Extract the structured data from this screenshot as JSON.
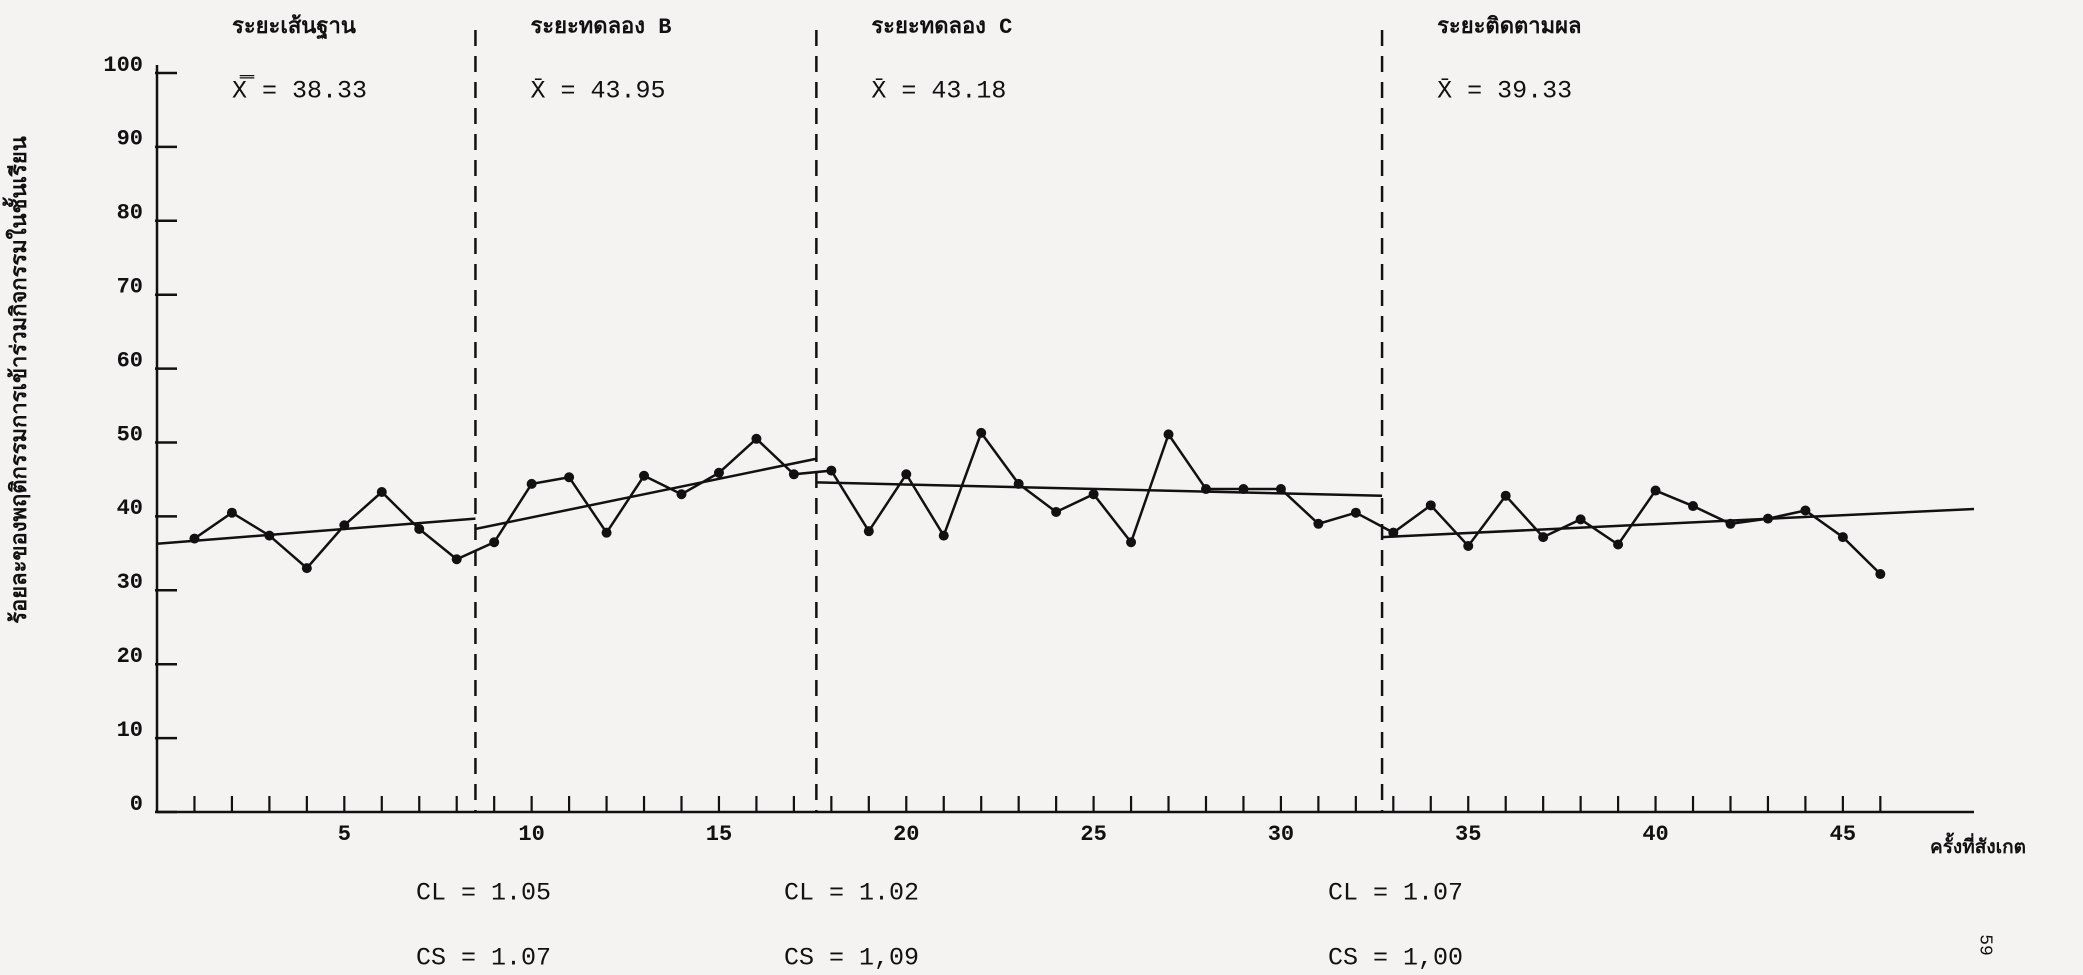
{
  "chart_data": {
    "type": "line",
    "y_label": "ร้อยละของพฤติกรรมการเข้าร่วมกิจกรรมในชั้นเรียน",
    "x_label": "ครั้งที่สังเกต",
    "x": [
      1,
      2,
      3,
      4,
      5,
      6,
      7,
      8,
      9,
      10,
      11,
      12,
      13,
      14,
      15,
      16,
      17,
      18,
      19,
      20,
      21,
      22,
      23,
      24,
      25,
      26,
      27,
      28,
      29,
      30,
      31,
      32,
      33,
      34,
      35,
      36,
      37,
      38,
      39,
      40,
      41,
      42,
      43,
      44,
      45,
      46
    ],
    "values": [
      37,
      40.5,
      37.4,
      33,
      38.8,
      43.3,
      38.3,
      34.2,
      36.5,
      44.4,
      45.3,
      37.8,
      45.5,
      43,
      45.9,
      50.5,
      45.7,
      46.2,
      38,
      45.7,
      37.4,
      51.3,
      44.4,
      40.6,
      43,
      36.5,
      51.1,
      43.7,
      43.7,
      43.7,
      39,
      40.5,
      37.8,
      41.5,
      36,
      42.8,
      37.2,
      39.6,
      36.2,
      43.5,
      41.4,
      39,
      39.7,
      40.8,
      37.2,
      32.2
    ],
    "color": "#111111",
    "xlim": [
      0,
      48.5
    ],
    "ylim": [
      0,
      100
    ],
    "xticks": [
      5,
      10,
      15,
      20,
      25,
      30,
      35,
      40,
      45
    ],
    "yticks": [
      0,
      10,
      20,
      30,
      40,
      50,
      60,
      70,
      80,
      90,
      100
    ],
    "phase_lines": [
      8.5,
      17.6,
      32.7
    ],
    "trends": [
      {
        "x": [
          0,
          8.5
        ],
        "values": [
          36.3,
          39.7
        ]
      },
      {
        "x": [
          8.5,
          17.6
        ],
        "values": [
          38.3,
          47.8
        ]
      },
      {
        "x": [
          17.6,
          32.7
        ],
        "values": [
          44.6,
          42.8
        ]
      },
      {
        "x": [
          32.7,
          48.5
        ],
        "values": [
          37.2,
          41
        ]
      }
    ],
    "phases": [
      {
        "title": "ระยะเส้นฐาน",
        "mean": "X̿  =  38.33"
      },
      {
        "title": "ระยะทดลอง B",
        "mean": "X̄  =  43.95"
      },
      {
        "title": "ระยะทดลอง C",
        "mean": "X̄  =  43.18"
      },
      {
        "title": "ระยะติดตามผล",
        "mean": "X̄  =  39.33"
      }
    ],
    "coefficients": [
      {
        "cl": "CL  =  1.05",
        "cs": "CS  =  1.07"
      },
      {
        "cl": "CL  =  1.02",
        "cs": "CS  =  1,09"
      },
      {
        "cl": "CL  =  1.07",
        "cs": "CS  =  1,00"
      }
    ],
    "page_number": "59"
  }
}
